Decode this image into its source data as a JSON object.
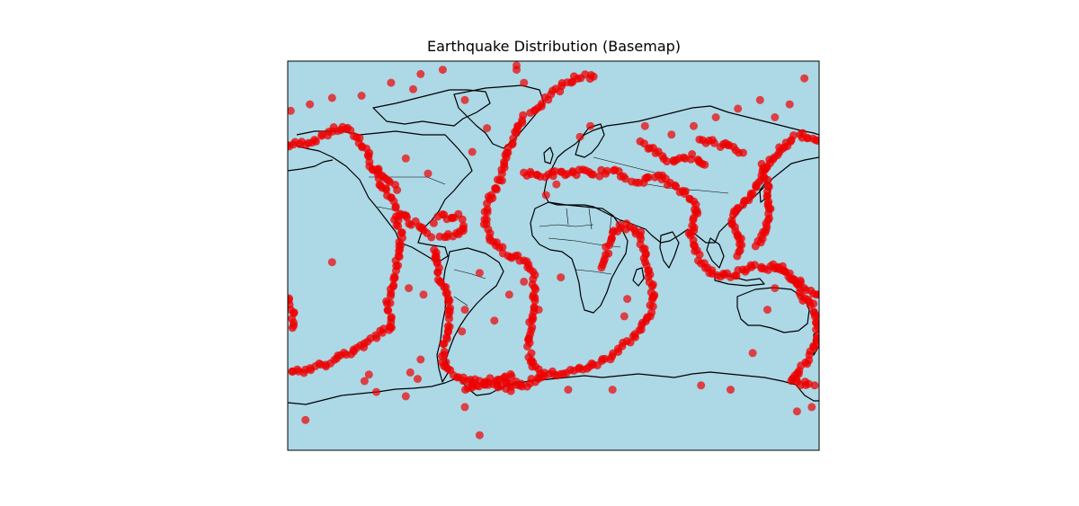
{
  "title": "Earthquake Distribution (Basemap)",
  "colors": {
    "ocean": "#add8e6",
    "coastline": "#000000",
    "event": "#ee0000",
    "frame": "#000000"
  },
  "projection": "cylindrical",
  "extent": {
    "lon": [
      -180,
      180
    ],
    "lat": [
      -90,
      90
    ]
  },
  "layers": [
    "ocean-fill",
    "coastlines",
    "country-borders",
    "earthquake-points"
  ],
  "chart_data": {
    "type": "scatter",
    "title": "Earthquake Distribution (Basemap)",
    "xlabel": "",
    "ylabel": "",
    "xlim": [
      -180,
      180
    ],
    "ylim": [
      -90,
      90
    ],
    "grid": false,
    "series": [
      {
        "marker": "circle",
        "color": "#ee0000",
        "belts": [
          {
            "points": [
              [
                -180,
                51
              ],
              [
                -170,
                52
              ],
              [
                -160,
                54
              ],
              [
                -150,
                58
              ],
              [
                -140,
                59
              ],
              [
                -132,
                54
              ],
              [
                -126,
                48
              ],
              [
                -124,
                42
              ],
              [
                -118,
                34
              ],
              [
                -110,
                27
              ],
              [
                -105,
                20
              ],
              [
                -97,
                16
              ],
              [
                -90,
                14
              ],
              [
                -85,
                11
              ],
              [
                -82,
                8
              ]
            ]
          },
          {
            "points": [
              [
                -80,
                4
              ],
              [
                -79,
                -2
              ],
              [
                -77,
                -10
              ],
              [
                -72,
                -17
              ],
              [
                -71,
                -24
              ],
              [
                -71,
                -30
              ],
              [
                -72,
                -36
              ],
              [
                -74,
                -42
              ],
              [
                -75,
                -48
              ],
              [
                -72,
                -52
              ],
              [
                -68,
                -55
              ]
            ]
          },
          {
            "points": [
              [
                -68,
                -55
              ],
              [
                -60,
                -57
              ],
              [
                -50,
                -58
              ],
              [
                -40,
                -57
              ],
              [
                -30,
                -56
              ],
              [
                -26,
                -58
              ],
              [
                -35,
                -60
              ],
              [
                -50,
                -60
              ],
              [
                -62,
                -62
              ]
            ]
          },
          {
            "points": [
              [
                -80,
                16
              ],
              [
                -76,
                18
              ],
              [
                -70,
                18
              ],
              [
                -64,
                18
              ],
              [
                -61,
                15
              ],
              [
                -61,
                12
              ],
              [
                -66,
                10
              ],
              [
                -72,
                10
              ],
              [
                -78,
                9
              ]
            ]
          },
          {
            "points": [
              [
                -32,
                -62
              ],
              [
                -20,
                -60
              ],
              [
                -5,
                -55
              ],
              [
                10,
                -54
              ],
              [
                20,
                -52
              ],
              [
                30,
                -50
              ],
              [
                40,
                -46
              ],
              [
                50,
                -40
              ],
              [
                60,
                -33
              ],
              [
                66,
                -27
              ],
              [
                68,
                -20
              ],
              [
                66,
                -10
              ],
              [
                62,
                0
              ],
              [
                58,
                10
              ],
              [
                52,
                14
              ],
              [
                44,
                13
              ],
              [
                40,
                10
              ],
              [
                36,
                2
              ],
              [
                33,
                -6
              ]
            ]
          },
          {
            "points": [
              [
                -20,
                65
              ],
              [
                -25,
                57
              ],
              [
                -30,
                50
              ],
              [
                -33,
                43
              ],
              [
                -36,
                36
              ],
              [
                -40,
                30
              ],
              [
                -45,
                24
              ],
              [
                -46,
                15
              ],
              [
                -42,
                8
              ],
              [
                -32,
                1
              ],
              [
                -20,
                -2
              ],
              [
                -13,
                -10
              ],
              [
                -13,
                -20
              ],
              [
                -15,
                -30
              ],
              [
                -17,
                -40
              ],
              [
                -15,
                -50
              ],
              [
                -5,
                -55
              ]
            ]
          },
          {
            "points": [
              [
                -15,
                66
              ],
              [
                -5,
                72
              ],
              [
                5,
                78
              ],
              [
                15,
                82
              ],
              [
                30,
                84
              ]
            ]
          },
          {
            "points": [
              [
                -20,
                38
              ],
              [
                -10,
                37
              ],
              [
                0,
                38
              ],
              [
                10,
                38
              ],
              [
                20,
                39
              ],
              [
                25,
                37
              ],
              [
                30,
                38
              ],
              [
                35,
                39
              ],
              [
                40,
                39
              ],
              [
                45,
                38
              ],
              [
                50,
                36
              ],
              [
                55,
                35
              ],
              [
                60,
                34
              ],
              [
                65,
                36
              ],
              [
                70,
                37
              ],
              [
                75,
                36
              ],
              [
                80,
                33
              ],
              [
                85,
                30
              ],
              [
                90,
                28
              ],
              [
                95,
                25
              ],
              [
                97,
                20
              ],
              [
                95,
                15
              ],
              [
                93,
                10
              ],
              [
                95,
                4
              ],
              [
                100,
                -3
              ],
              [
                105,
                -7
              ],
              [
                112,
                -9
              ],
              [
                120,
                -9
              ],
              [
                128,
                -7
              ],
              [
                135,
                -4
              ],
              [
                142,
                -5
              ],
              [
                150,
                -6
              ],
              [
                156,
                -8
              ],
              [
                162,
                -11
              ],
              [
                167,
                -15
              ],
              [
                170,
                -20
              ],
              [
                175,
                -22
              ],
              [
                178,
                -30
              ],
              [
                178,
                -38
              ],
              [
                175,
                -45
              ],
              [
                170,
                -50
              ],
              [
                165,
                -55
              ],
              [
                160,
                -58
              ],
              [
                178,
                -60
              ]
            ]
          },
          {
            "points": [
              [
                60,
                52
              ],
              [
                70,
                48
              ],
              [
                80,
                44
              ],
              [
                88,
                45
              ],
              [
                95,
                46
              ],
              [
                100,
                44
              ],
              [
                105,
                42
              ]
            ]
          },
          {
            "points": [
              [
                178,
                52
              ],
              [
                170,
                56
              ],
              [
                160,
                54
              ],
              [
                155,
                50
              ],
              [
                150,
                46
              ],
              [
                145,
                42
              ],
              [
                142,
                38
              ],
              [
                140,
                34
              ],
              [
                135,
                30
              ],
              [
                130,
                26
              ],
              [
                125,
                22
              ],
              [
                121,
                17
              ],
              [
                123,
                12
              ],
              [
                126,
                8
              ],
              [
                127,
                4
              ],
              [
                125,
                -1
              ]
            ]
          },
          {
            "points": [
              [
                142,
                42
              ],
              [
                144,
                36
              ],
              [
                145,
                30
              ],
              [
                146,
                22
              ],
              [
                145,
                15
              ],
              [
                143,
                10
              ],
              [
                138,
                6
              ],
              [
                134,
                4
              ]
            ]
          },
          {
            "points": [
              [
                180,
                -18
              ],
              [
                172,
                -15
              ],
              [
                165,
                -12
              ],
              [
                155,
                -6
              ],
              [
                148,
                -4
              ]
            ]
          },
          {
            "points": [
              [
                -180,
                -20
              ],
              [
                -177,
                -25
              ],
              [
                -176,
                -30
              ],
              [
                -177,
                -35
              ]
            ]
          },
          {
            "points": [
              [
                -110,
                -33
              ],
              [
                -112,
                -20
              ],
              [
                -108,
                -10
              ],
              [
                -105,
                0
              ],
              [
                -103,
                10
              ],
              [
                -108,
                20
              ]
            ]
          },
          {
            "points": [
              [
                -110,
                -33
              ],
              [
                -118,
                -36
              ],
              [
                -125,
                -40
              ],
              [
                -140,
                -45
              ],
              [
                -155,
                -50
              ],
              [
                -170,
                -53
              ],
              [
                -180,
                -55
              ]
            ]
          },
          {
            "points": [
              [
                -120,
                40
              ],
              [
                -115,
                36
              ],
              [
                -110,
                33
              ],
              [
                -105,
                30
              ]
            ]
          },
          {
            "points": [
              [
                100,
                54
              ],
              [
                110,
                52
              ],
              [
                120,
                50
              ],
              [
                130,
                48
              ]
            ]
          }
        ],
        "scattered": [
          [
            -150,
            -3
          ],
          [
            -98,
            -15
          ],
          [
            -85,
            38
          ],
          [
            -100,
            45
          ],
          [
            -88,
            -18
          ],
          [
            -60,
            -25
          ],
          [
            -62,
            -35
          ],
          [
            -50,
            -8
          ],
          [
            -10,
            -25
          ],
          [
            5,
            -10
          ],
          [
            2,
            33
          ],
          [
            -5,
            28
          ],
          [
            18,
            55
          ],
          [
            25,
            60
          ],
          [
            62,
            60
          ],
          [
            80,
            56
          ],
          [
            95,
            60
          ],
          [
            110,
            64
          ],
          [
            125,
            68
          ],
          [
            140,
            72
          ],
          [
            160,
            70
          ],
          [
            150,
            64
          ],
          [
            170,
            82
          ],
          [
            -75,
            86
          ],
          [
            -90,
            84
          ],
          [
            -110,
            80
          ],
          [
            -130,
            74
          ],
          [
            -150,
            73
          ],
          [
            -165,
            70
          ],
          [
            -178,
            67
          ],
          [
            -60,
            72
          ],
          [
            -55,
            48
          ],
          [
            -45,
            59
          ],
          [
            -25,
            86
          ],
          [
            -20,
            80
          ],
          [
            -25,
            88
          ],
          [
            -95,
            77
          ],
          [
            50,
            -20
          ],
          [
            48,
            -28
          ],
          [
            100,
            -60
          ],
          [
            135,
            -45
          ],
          [
            145,
            -25
          ],
          [
            150,
            -15
          ],
          [
            165,
            -72
          ],
          [
            -168,
            -76
          ],
          [
            -125,
            -55
          ],
          [
            -60,
            -70
          ],
          [
            -50,
            -83
          ],
          [
            -100,
            -65
          ],
          [
            -120,
            -63
          ],
          [
            -128,
            -58
          ],
          [
            -90,
            -48
          ],
          [
            -92,
            -57
          ],
          [
            -97,
            -54
          ],
          [
            -40,
            -30
          ],
          [
            -30,
            -18
          ],
          [
            -20,
            -12
          ],
          [
            10,
            -62
          ],
          [
            40,
            -62
          ],
          [
            120,
            -62
          ],
          [
            175,
            -70
          ]
        ]
      }
    ]
  }
}
